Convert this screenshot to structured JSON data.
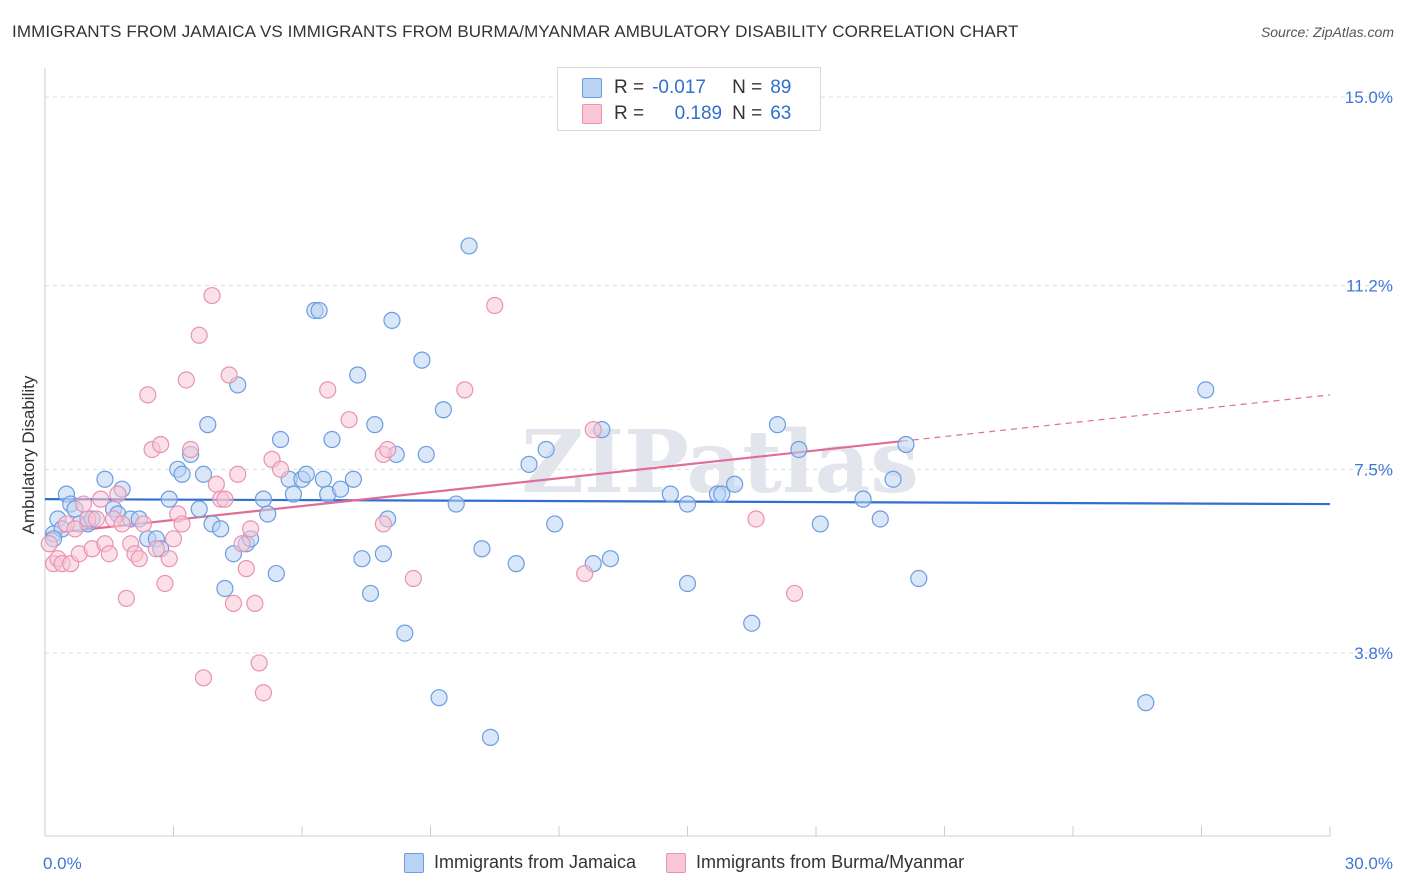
{
  "title": "IMMIGRANTS FROM JAMAICA VS IMMIGRANTS FROM BURMA/MYANMAR AMBULATORY DISABILITY CORRELATION CHART",
  "source": "Source: ZipAtlas.com",
  "watermark": "ZIPatlas",
  "legend": {
    "rows": [
      {
        "r_label": "R =",
        "r_value": "-0.017",
        "n_label": "N =",
        "n_value": "89"
      },
      {
        "r_label": "R =",
        "r_value": "0.189",
        "n_label": "N =",
        "n_value": "63"
      }
    ]
  },
  "colors": {
    "series1_fill": "#b9d3f3",
    "series1_stroke": "#6c9de0",
    "series1_line": "#2f6fd1",
    "series2_fill": "#f8c6d6",
    "series2_stroke": "#e993b1",
    "series2_line": "#e06c97",
    "axis_label": "#3f76d6",
    "grid": "#dcdcdc"
  },
  "chart_data": {
    "type": "scatter",
    "xlabel": "",
    "ylabel": "Ambulatory Disability",
    "xlim": [
      0,
      30
    ],
    "ylim": [
      0,
      15.5
    ],
    "x_tick_labels": [
      {
        "value": 0,
        "label": "0.0%"
      },
      {
        "value": 30,
        "label": "30.0%"
      }
    ],
    "y_ticks": [
      {
        "value": 3.8,
        "label": "3.8%"
      },
      {
        "value": 7.5,
        "label": "7.5%"
      },
      {
        "value": 11.2,
        "label": "11.2%"
      },
      {
        "value": 15.0,
        "label": "15.0%"
      }
    ],
    "grid": true,
    "legend_position": "top-center",
    "series": [
      {
        "name": "Immigrants from Jamaica",
        "color": "#6c9de0",
        "trend": {
          "x": [
            0,
            30
          ],
          "y": [
            6.9,
            6.8
          ],
          "dashed_from": null
        },
        "points": [
          [
            0.2,
            6.2
          ],
          [
            0.3,
            6.5
          ],
          [
            0.4,
            6.3
          ],
          [
            0.5,
            7.0
          ],
          [
            0.6,
            6.8
          ],
          [
            0.7,
            6.7
          ],
          [
            0.8,
            6.4
          ],
          [
            1.0,
            6.4
          ],
          [
            1.1,
            6.5
          ],
          [
            1.4,
            7.3
          ],
          [
            1.6,
            6.7
          ],
          [
            1.7,
            6.6
          ],
          [
            1.8,
            7.1
          ],
          [
            2.0,
            6.5
          ],
          [
            2.2,
            6.5
          ],
          [
            2.4,
            6.1
          ],
          [
            2.6,
            6.1
          ],
          [
            2.7,
            5.9
          ],
          [
            2.9,
            6.9
          ],
          [
            3.1,
            7.5
          ],
          [
            3.2,
            7.4
          ],
          [
            3.4,
            7.8
          ],
          [
            3.6,
            6.7
          ],
          [
            3.7,
            7.4
          ],
          [
            3.8,
            8.4
          ],
          [
            3.9,
            6.4
          ],
          [
            4.1,
            6.3
          ],
          [
            4.2,
            5.1
          ],
          [
            4.4,
            5.8
          ],
          [
            4.5,
            9.2
          ],
          [
            4.7,
            6.0
          ],
          [
            4.8,
            6.1
          ],
          [
            5.1,
            6.9
          ],
          [
            5.2,
            6.6
          ],
          [
            5.4,
            5.4
          ],
          [
            5.5,
            8.1
          ],
          [
            5.7,
            7.3
          ],
          [
            5.8,
            7.0
          ],
          [
            6.0,
            7.3
          ],
          [
            6.1,
            7.4
          ],
          [
            6.3,
            10.7
          ],
          [
            6.4,
            10.7
          ],
          [
            6.5,
            7.3
          ],
          [
            6.6,
            7.0
          ],
          [
            6.7,
            8.1
          ],
          [
            6.9,
            7.1
          ],
          [
            7.2,
            7.3
          ],
          [
            7.3,
            9.4
          ],
          [
            7.4,
            5.7
          ],
          [
            7.6,
            5.0
          ],
          [
            7.7,
            8.4
          ],
          [
            7.9,
            5.8
          ],
          [
            8.0,
            6.5
          ],
          [
            8.1,
            10.5
          ],
          [
            8.2,
            7.8
          ],
          [
            8.4,
            4.2
          ],
          [
            8.8,
            9.7
          ],
          [
            8.9,
            7.8
          ],
          [
            9.2,
            2.9
          ],
          [
            9.3,
            8.7
          ],
          [
            9.6,
            6.8
          ],
          [
            9.9,
            12.0
          ],
          [
            10.2,
            5.9
          ],
          [
            10.4,
            2.1
          ],
          [
            11.0,
            5.6
          ],
          [
            11.3,
            7.6
          ],
          [
            11.7,
            7.9
          ],
          [
            11.9,
            6.4
          ],
          [
            12.8,
            5.6
          ],
          [
            13.0,
            8.3
          ],
          [
            13.2,
            5.7
          ],
          [
            14.6,
            7.0
          ],
          [
            15.0,
            6.8
          ],
          [
            15.0,
            5.2
          ],
          [
            15.7,
            7.0
          ],
          [
            15.8,
            7.0
          ],
          [
            16.1,
            7.2
          ],
          [
            16.5,
            4.4
          ],
          [
            17.1,
            8.4
          ],
          [
            17.6,
            7.9
          ],
          [
            18.1,
            6.4
          ],
          [
            19.1,
            6.9
          ],
          [
            19.5,
            6.5
          ],
          [
            19.8,
            7.3
          ],
          [
            20.1,
            8.0
          ],
          [
            20.4,
            5.3
          ],
          [
            25.7,
            2.8
          ],
          [
            27.1,
            9.1
          ],
          [
            0.2,
            6.1
          ]
        ]
      },
      {
        "name": "Immigrants from Burma/Myanmar",
        "color": "#e993b1",
        "trend": {
          "x": [
            0,
            30
          ],
          "y": [
            6.2,
            9.0
          ],
          "dashed_from": 20.0
        },
        "points": [
          [
            0.1,
            6.0
          ],
          [
            0.2,
            5.6
          ],
          [
            0.3,
            5.7
          ],
          [
            0.4,
            5.6
          ],
          [
            0.5,
            6.4
          ],
          [
            0.6,
            5.6
          ],
          [
            0.7,
            6.3
          ],
          [
            0.8,
            5.8
          ],
          [
            0.9,
            6.8
          ],
          [
            1.0,
            6.5
          ],
          [
            1.1,
            5.9
          ],
          [
            1.2,
            6.5
          ],
          [
            1.3,
            6.9
          ],
          [
            1.4,
            6.0
          ],
          [
            1.5,
            5.8
          ],
          [
            1.6,
            6.5
          ],
          [
            1.7,
            7.0
          ],
          [
            1.8,
            6.4
          ],
          [
            1.9,
            4.9
          ],
          [
            2.0,
            6.0
          ],
          [
            2.1,
            5.8
          ],
          [
            2.2,
            5.7
          ],
          [
            2.3,
            6.4
          ],
          [
            2.4,
            9.0
          ],
          [
            2.5,
            7.9
          ],
          [
            2.6,
            5.9
          ],
          [
            2.7,
            8.0
          ],
          [
            2.8,
            5.2
          ],
          [
            2.9,
            5.7
          ],
          [
            3.0,
            6.1
          ],
          [
            3.1,
            6.6
          ],
          [
            3.2,
            6.4
          ],
          [
            3.3,
            9.3
          ],
          [
            3.4,
            7.9
          ],
          [
            3.6,
            10.2
          ],
          [
            3.7,
            3.3
          ],
          [
            3.9,
            11.0
          ],
          [
            4.0,
            7.2
          ],
          [
            4.1,
            6.9
          ],
          [
            4.2,
            6.9
          ],
          [
            4.3,
            9.4
          ],
          [
            4.4,
            4.8
          ],
          [
            4.5,
            7.4
          ],
          [
            4.6,
            6.0
          ],
          [
            4.7,
            5.5
          ],
          [
            4.8,
            6.3
          ],
          [
            4.9,
            4.8
          ],
          [
            5.0,
            3.6
          ],
          [
            5.1,
            3.0
          ],
          [
            5.3,
            7.7
          ],
          [
            5.5,
            7.5
          ],
          [
            6.6,
            9.1
          ],
          [
            7.1,
            8.5
          ],
          [
            7.9,
            6.4
          ],
          [
            7.9,
            7.8
          ],
          [
            8.0,
            7.9
          ],
          [
            8.6,
            5.3
          ],
          [
            9.8,
            9.1
          ],
          [
            10.5,
            10.8
          ],
          [
            12.6,
            5.4
          ],
          [
            12.8,
            8.3
          ],
          [
            16.6,
            6.5
          ],
          [
            17.5,
            5.0
          ]
        ]
      }
    ]
  }
}
